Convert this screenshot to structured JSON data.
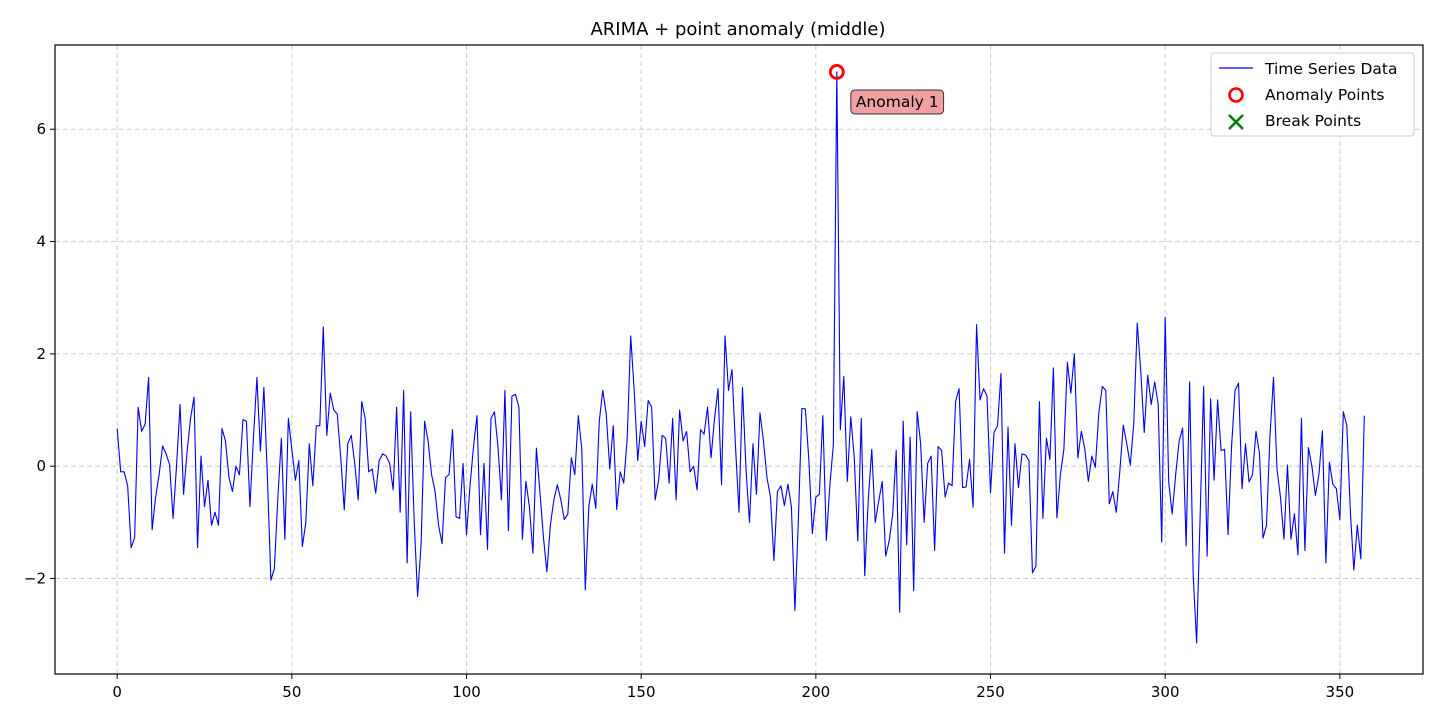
{
  "chart_data": {
    "type": "line",
    "title": "ARIMA + point anomaly (middle)",
    "xlabel": "",
    "ylabel": "",
    "xlim": [
      -17.8,
      373.8
    ],
    "ylim": [
      -3.7,
      7.5
    ],
    "xticks": [
      0,
      50,
      100,
      150,
      200,
      250,
      300,
      350
    ],
    "yticks": [
      -2,
      0,
      2,
      4,
      6
    ],
    "ytick_labels": [
      "−2",
      "0",
      "2",
      "4",
      "6"
    ],
    "grid": true,
    "legend_position": "top-right",
    "colors": {
      "series": "#0000ee",
      "anomaly": "#ff0000",
      "break": "#008000",
      "grid": "#cccccc",
      "annotation_fill": "#f0a0a0"
    },
    "series": [
      {
        "name": "Time Series Data",
        "values": [
          0.67,
          -0.1,
          -0.1,
          -0.35,
          -1.45,
          -1.27,
          1.05,
          0.62,
          0.75,
          1.58,
          -1.13,
          -0.55,
          -0.15,
          0.36,
          0.22,
          0.03,
          -0.93,
          0.02,
          1.1,
          -0.5,
          0.25,
          0.85,
          1.23,
          -1.45,
          0.18,
          -0.72,
          -0.25,
          -1.05,
          -0.82,
          -1.05,
          0.67,
          0.45,
          -0.2,
          -0.45,
          0.0,
          -0.15,
          0.83,
          0.8,
          -0.72,
          0.5,
          1.58,
          0.27,
          1.4,
          -0.2,
          -2.03,
          -1.82,
          -0.55,
          0.5,
          -1.3,
          0.85,
          0.3,
          -0.25,
          0.1,
          -1.43,
          -1.0,
          0.4,
          -0.35,
          0.72,
          0.72,
          2.48,
          0.55,
          1.3,
          1.0,
          0.93,
          0.15,
          -0.78,
          0.4,
          0.55,
          0.05,
          -0.6,
          1.15,
          0.85,
          -0.1,
          -0.05,
          -0.48,
          0.1,
          0.22,
          0.18,
          0.05,
          -0.42,
          1.05,
          -0.82,
          1.35,
          -1.72,
          0.97,
          -0.95,
          -2.32,
          -1.38,
          0.8,
          0.45,
          -0.15,
          -0.45,
          -1.05,
          -1.38,
          -0.2,
          -0.15,
          0.65,
          -0.9,
          -0.93,
          0.05,
          -1.22,
          -0.35,
          0.35,
          0.9,
          -1.22,
          0.05,
          -1.48,
          0.85,
          0.97,
          0.35,
          -0.6,
          1.35,
          -1.15,
          1.25,
          1.28,
          1.05,
          -1.3,
          -0.27,
          -0.72,
          -1.55,
          0.32,
          -0.45,
          -1.25,
          -1.88,
          -1.05,
          -0.6,
          -0.33,
          -0.6,
          -0.95,
          -0.85,
          0.15,
          -0.15,
          0.9,
          0.3,
          -2.2,
          -0.72,
          -0.32,
          -0.75,
          0.8,
          1.35,
          0.93,
          -0.05,
          0.72,
          -0.77,
          -0.1,
          -0.3,
          0.5,
          2.32,
          1.35,
          0.1,
          0.8,
          0.35,
          1.17,
          1.05,
          -0.6,
          -0.25,
          0.55,
          0.5,
          -0.3,
          0.85,
          -0.6,
          1.0,
          0.45,
          0.62,
          -0.1,
          0.0,
          -0.42,
          0.65,
          0.57,
          1.05,
          0.15,
          0.85,
          1.38,
          -0.33,
          2.32,
          1.35,
          1.72,
          0.35,
          -0.82,
          1.4,
          -0.05,
          -1.0,
          0.4,
          -0.5,
          0.95,
          0.45,
          -0.2,
          -0.55,
          -1.68,
          -0.45,
          -0.35,
          -0.7,
          -0.32,
          -0.72,
          -2.57,
          -0.95,
          1.03,
          1.02,
          0.1,
          -1.2,
          -0.55,
          -0.5,
          0.9,
          -1.32,
          -0.35,
          0.38,
          7.02,
          0.65,
          1.6,
          -0.27,
          0.88,
          0.15,
          -1.33,
          0.85,
          -1.95,
          -0.6,
          0.3,
          -1.0,
          -0.62,
          -0.27,
          -1.6,
          -1.33,
          -0.85,
          0.28,
          -2.6,
          0.8,
          -1.4,
          0.52,
          -2.22,
          0.97,
          0.4,
          -1.0,
          0.05,
          0.18,
          -1.5,
          0.35,
          0.28,
          -0.55,
          -0.3,
          -0.35,
          1.15,
          1.38,
          -0.38,
          -0.37,
          0.12,
          -0.73,
          2.52,
          1.18,
          1.38,
          1.25,
          -0.47,
          0.6,
          0.72,
          1.65,
          -1.55,
          0.7,
          -1.05,
          0.4,
          -0.38,
          0.22,
          0.2,
          0.1,
          -1.9,
          -1.78,
          1.15,
          -0.93,
          0.5,
          0.12,
          1.75,
          -0.92,
          -0.15,
          0.3,
          1.85,
          1.3,
          2.0,
          0.15,
          0.62,
          0.3,
          -0.27,
          0.18,
          -0.02,
          0.95,
          1.42,
          1.35,
          -0.67,
          -0.45,
          -0.82,
          -0.1,
          0.73,
          0.4,
          0.02,
          0.75,
          2.55,
          1.7,
          0.6,
          1.62,
          1.1,
          1.5,
          1.1,
          -1.35,
          2.65,
          -0.28,
          -0.85,
          -0.15,
          0.45,
          0.68,
          -1.42,
          1.5,
          -1.92,
          -3.15,
          -0.9,
          1.42,
          -1.6,
          1.2,
          -0.25,
          1.18,
          0.28,
          0.3,
          -1.22,
          0.35,
          1.35,
          1.48,
          -0.4,
          0.4,
          -0.28,
          -0.15,
          0.62,
          0.22,
          -1.28,
          -1.05,
          0.55,
          1.58,
          -0.05,
          -0.55,
          -1.3,
          0.02,
          -1.3,
          -0.85,
          -1.58,
          0.85,
          -1.5,
          0.33,
          0.0,
          -0.52,
          -0.15,
          0.63,
          -1.72,
          0.07,
          -0.32,
          -0.4,
          -0.95,
          0.97,
          0.72,
          -0.8,
          -1.85,
          -1.05,
          -1.65,
          0.9
        ]
      }
    ],
    "anomaly_points": [
      {
        "x": 206,
        "y": 7.02
      }
    ],
    "break_points": [],
    "annotations": [
      {
        "text": "Anomaly 1",
        "x": 206,
        "y": 7.02
      }
    ],
    "legend": [
      "Time Series Data",
      "Anomaly Points",
      "Break Points"
    ]
  }
}
